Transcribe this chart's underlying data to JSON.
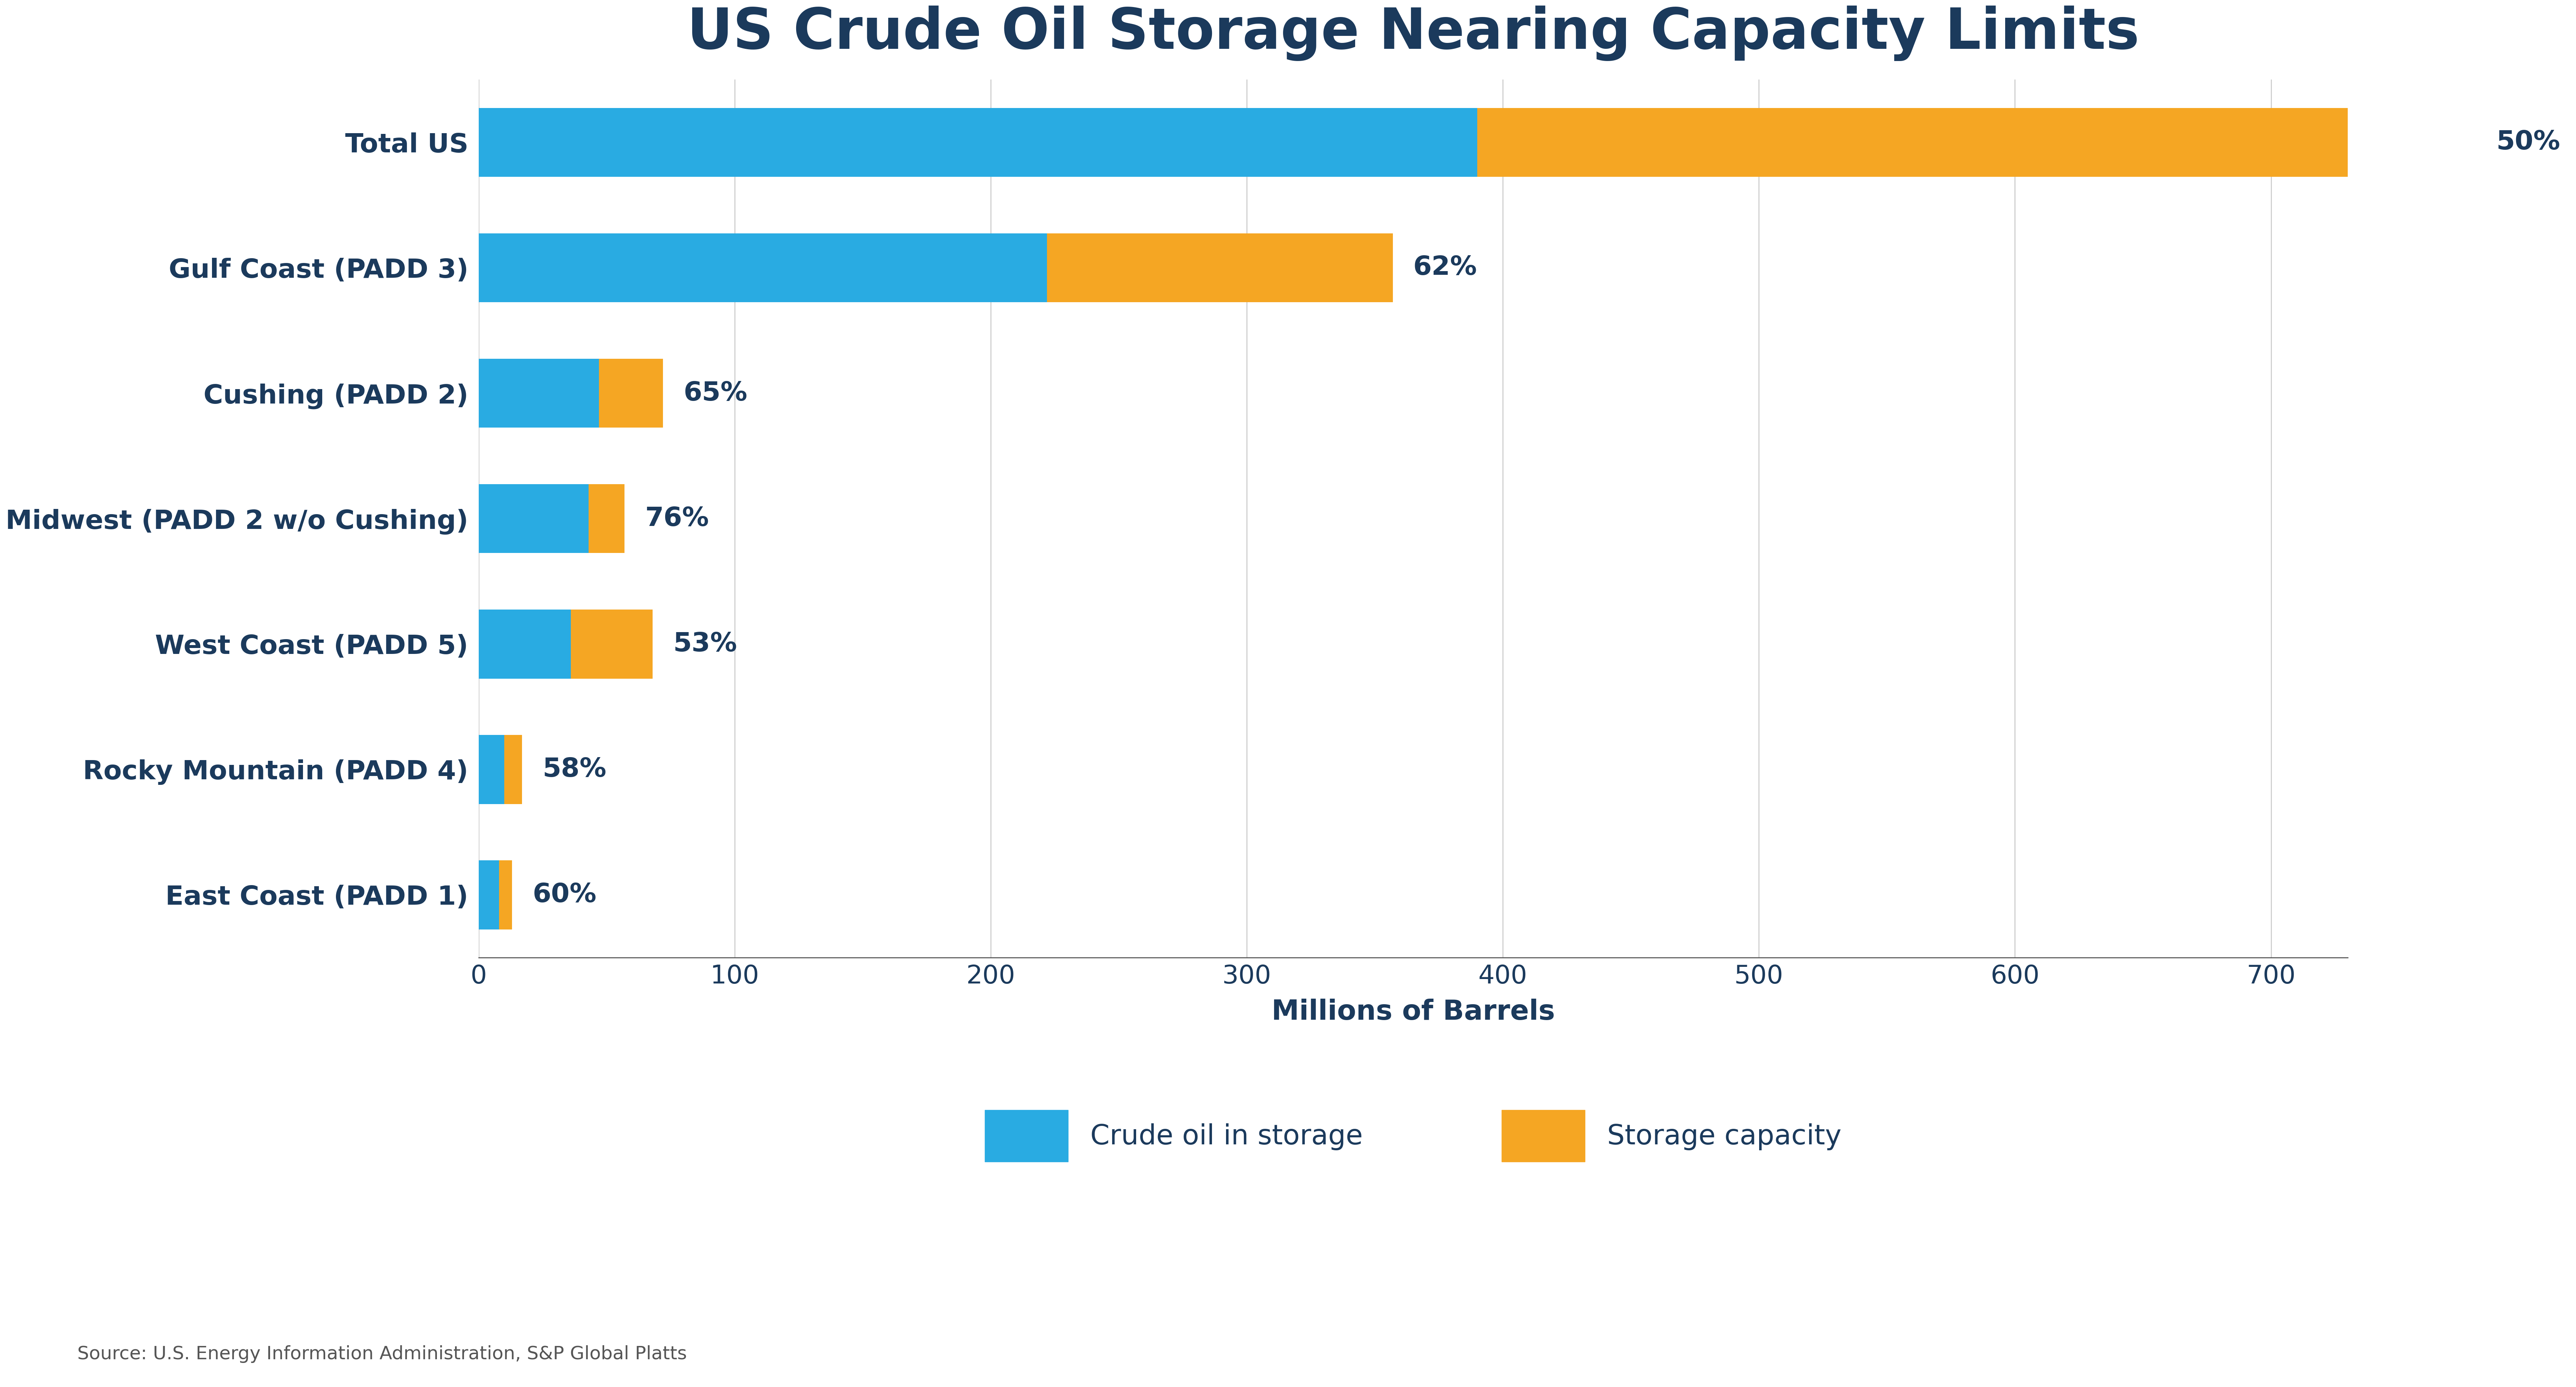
{
  "title": "US Crude Oil Storage Nearing Capacity Limits",
  "categories": [
    "Total US",
    "Gulf Coast (PADD 3)",
    "Cushing (PADD 2)",
    "Midwest (PADD 2 w/o Cushing)",
    "West Coast (PADD 5)",
    "Rocky Mountain (PADD 4)",
    "East Coast (PADD 1)"
  ],
  "crude_in_storage": [
    390,
    222,
    47,
    43,
    36,
    10,
    8
  ],
  "storage_capacity": [
    390,
    135,
    25,
    14,
    32,
    7,
    5
  ],
  "percentages": [
    "50%",
    "62%",
    "65%",
    "76%",
    "53%",
    "58%",
    "60%"
  ],
  "blue_color": "#29ABE2",
  "orange_color": "#F5A623",
  "title_color": "#1B3A5C",
  "label_color": "#1B3A5C",
  "xlabel": "Millions of Barrels",
  "xlim": [
    0,
    730
  ],
  "xticks": [
    0,
    100,
    200,
    300,
    400,
    500,
    600,
    700
  ],
  "legend_labels": [
    "Crude oil in storage",
    "Storage capacity"
  ],
  "source_text": "Source: U.S. Energy Information Administration, S&P Global Platts",
  "bg_color": "#FFFFFF",
  "grid_color": "#CCCCCC",
  "pct_label_fontsize": 52,
  "title_fontsize": 110,
  "tick_fontsize": 50,
  "xlabel_fontsize": 54,
  "legend_fontsize": 54,
  "source_fontsize": 36,
  "cat_fontsize": 52,
  "bar_height": 0.55
}
